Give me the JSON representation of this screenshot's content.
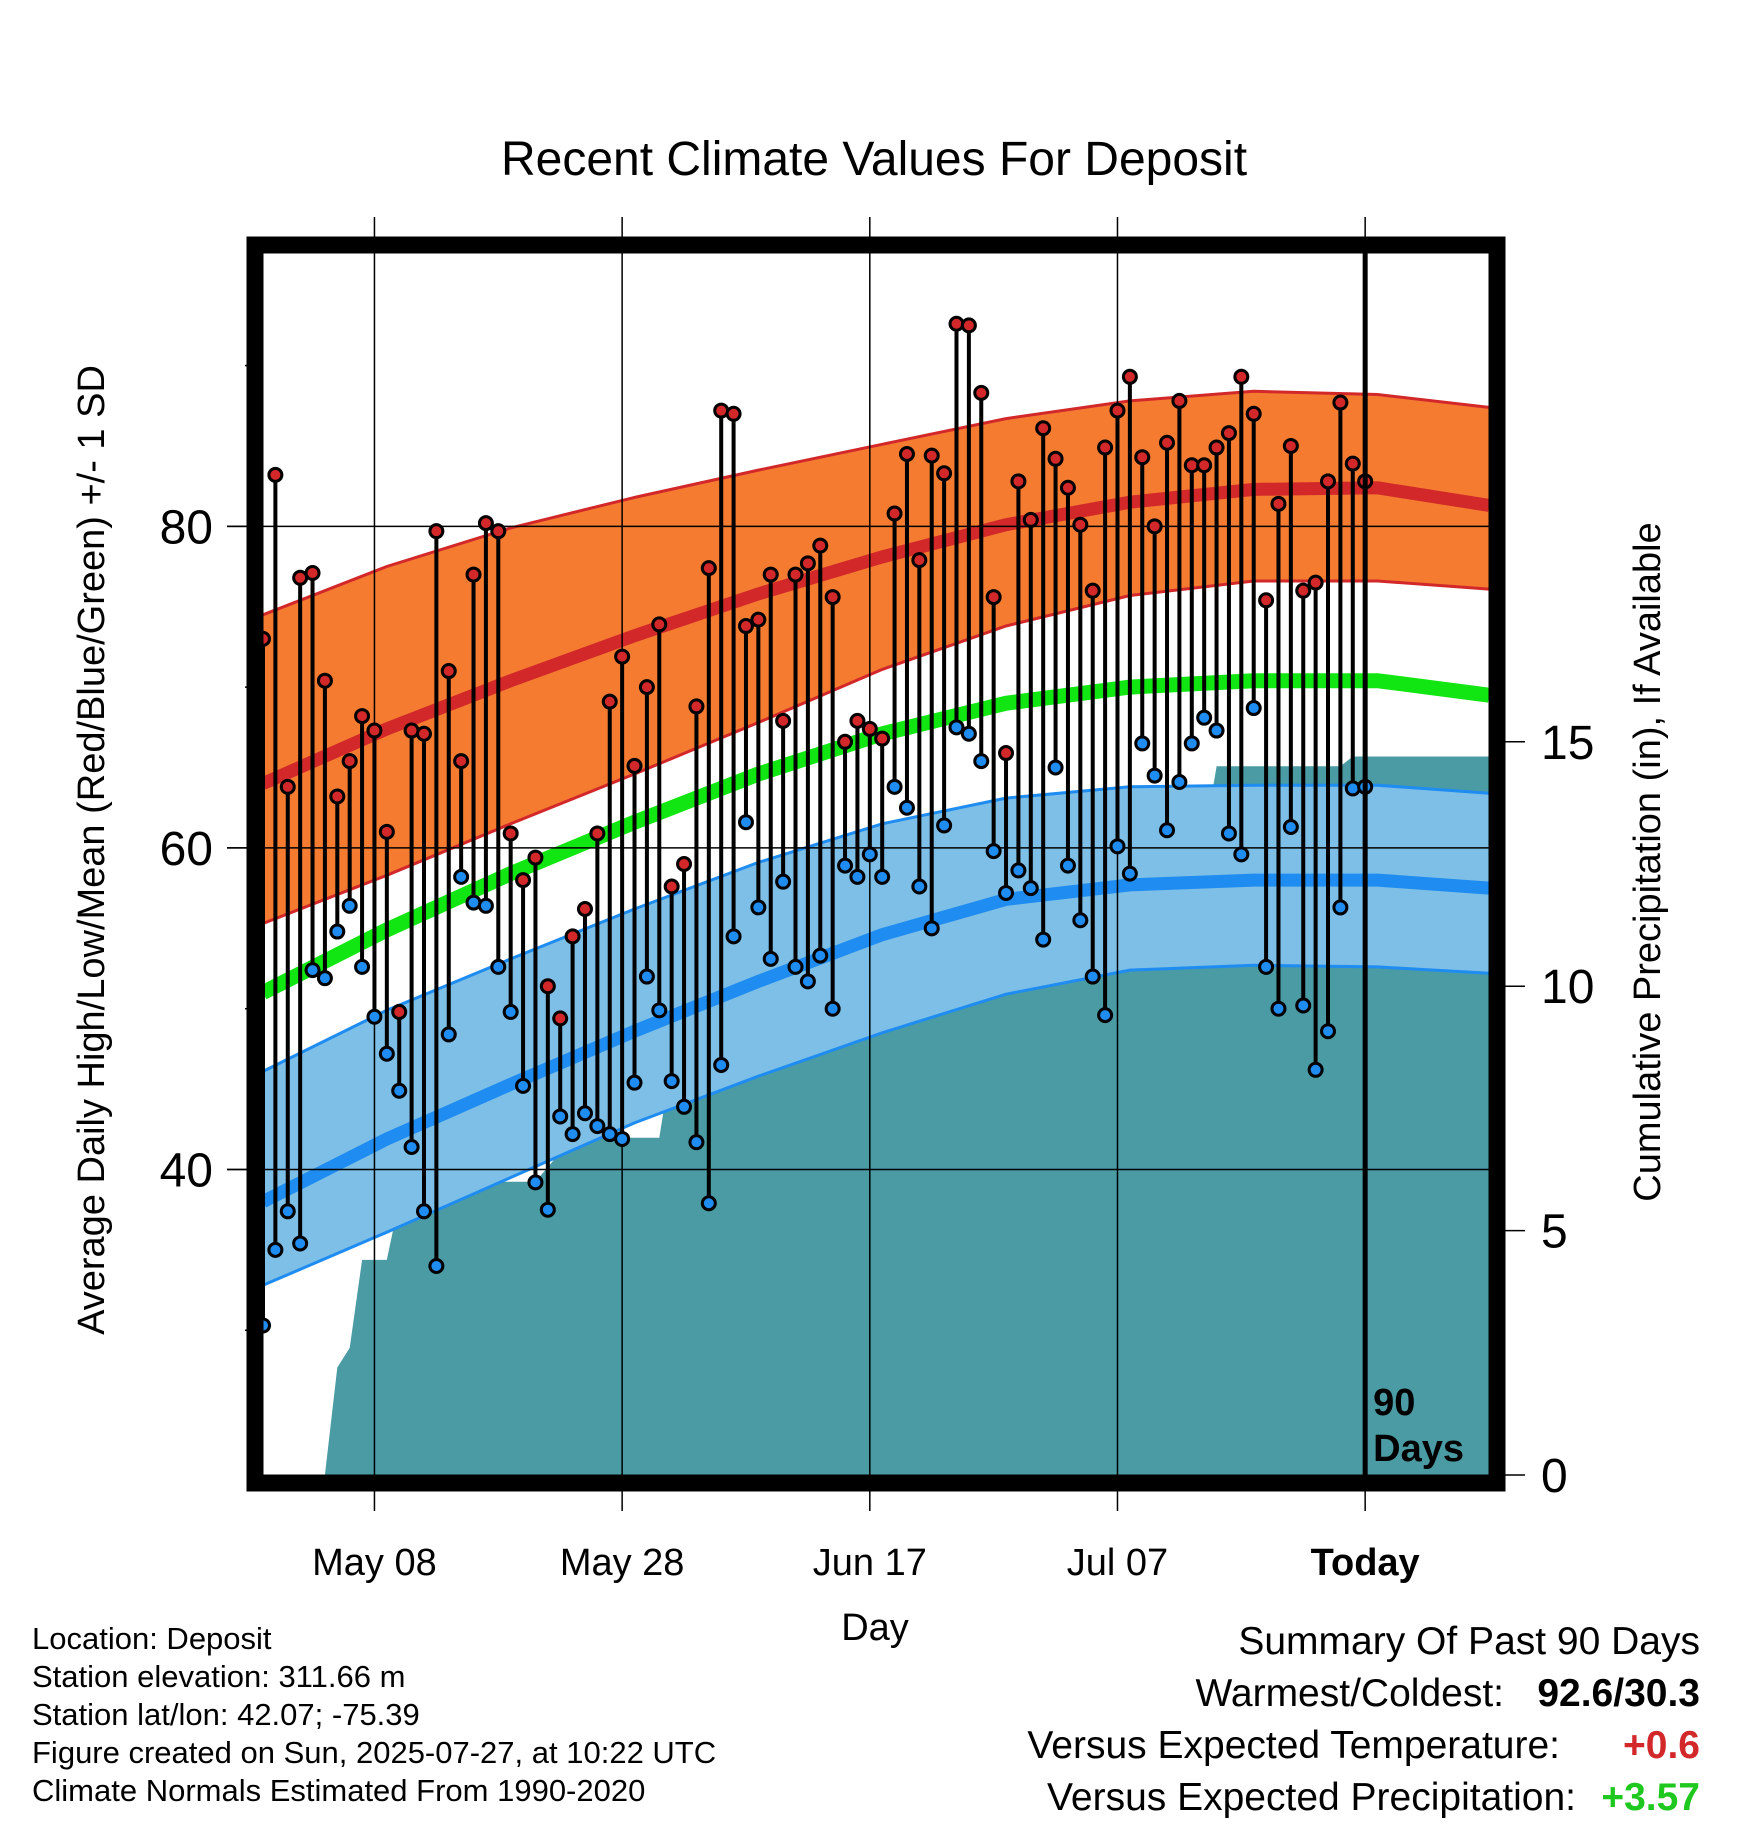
{
  "chart_data": {
    "type": "line",
    "title": "Recent Climate Values For Deposit",
    "xlabel": "Day",
    "ylabel": "Average Daily High/Low/Mean (Red/Blue/Green) +/- 1 SD",
    "y2label": "Cumulative Precipitation (in), If Available",
    "x_ticks": [
      "May 08",
      "May 28",
      "Jun 17",
      "Jul 07",
      "Today"
    ],
    "y_ticks": [
      40,
      60,
      80
    ],
    "y2_ticks": [
      0,
      5,
      10,
      15
    ],
    "ylim": [
      21,
      97
    ],
    "y2lim": [
      0,
      25
    ],
    "today_marker_label": [
      "90",
      "Days"
    ],
    "colors": {
      "high_band": "#f47b30",
      "high_mean": "#d2282a",
      "low_band": "#7dbfe6",
      "low_mean": "#1e8cf0",
      "mean_line": "#12e612",
      "precip_fill": "#4a9ba3",
      "high_dot": "#d2282a",
      "low_dot": "#1e8cf0"
    },
    "daily_high": [
      73.0,
      83.2,
      63.8,
      76.8,
      77.1,
      70.4,
      63.2,
      65.4,
      68.2,
      67.3,
      61.0,
      49.8,
      67.3,
      67.1,
      79.7,
      71.0,
      65.4,
      77.0,
      80.2,
      79.7,
      60.9,
      58.0,
      59.4,
      51.4,
      49.4,
      54.5,
      56.2,
      60.9,
      69.1,
      71.9,
      65.1,
      70.0,
      73.9,
      57.6,
      59.0,
      68.8,
      77.4,
      87.2,
      87.0,
      73.8,
      74.2,
      77.0,
      67.9,
      77.0,
      77.7,
      78.8,
      75.6,
      66.6,
      67.9,
      67.4,
      66.8,
      80.8,
      84.5,
      77.9,
      84.4,
      83.3,
      92.6,
      92.5,
      88.3,
      75.6,
      65.9,
      82.8,
      80.4,
      86.1,
      84.2,
      82.4,
      80.1,
      76.0,
      84.9,
      87.2,
      89.3,
      84.3,
      80.0,
      85.2,
      87.8,
      83.8,
      83.8,
      84.9,
      85.8,
      89.3,
      87.0,
      75.4,
      81.4,
      85.0,
      76.0,
      76.5,
      82.8,
      87.7,
      83.9,
      82.8
    ],
    "daily_low": [
      30.3,
      35.0,
      37.4,
      35.4,
      52.4,
      51.9,
      54.8,
      56.4,
      52.6,
      49.5,
      47.2,
      44.9,
      41.4,
      37.4,
      34.0,
      48.4,
      58.2,
      56.6,
      56.4,
      52.6,
      49.8,
      45.2,
      39.2,
      37.5,
      43.3,
      42.2,
      43.5,
      42.7,
      42.2,
      41.9,
      45.4,
      52.0,
      49.9,
      45.5,
      43.9,
      41.7,
      37.9,
      46.5,
      54.5,
      61.6,
      56.3,
      53.1,
      57.9,
      52.6,
      51.7,
      53.3,
      50.0,
      58.9,
      58.2,
      59.6,
      58.2,
      63.8,
      62.5,
      57.6,
      55.0,
      61.4,
      67.5,
      67.1,
      65.4,
      59.8,
      57.2,
      58.6,
      57.5,
      54.3,
      65.0,
      58.9,
      55.5,
      52.0,
      49.6,
      60.1,
      58.4,
      66.5,
      64.5,
      61.1,
      64.1,
      66.5,
      68.1,
      67.3,
      60.9,
      59.6,
      68.7,
      52.6,
      50.0,
      61.3,
      50.2,
      46.2,
      48.6,
      56.3,
      63.7,
      63.8
    ],
    "normal_days": [
      0,
      10,
      20,
      30,
      40,
      50,
      60,
      70,
      80,
      90,
      99
    ],
    "normal_high_mean": [
      64.0,
      67.4,
      70.4,
      73.2,
      75.8,
      78.1,
      80.1,
      81.5,
      82.3,
      82.4,
      81.3
    ],
    "normal_high_upper": [
      74.5,
      77.5,
      79.9,
      81.8,
      83.5,
      85.1,
      86.7,
      87.8,
      88.4,
      88.2,
      87.4
    ],
    "normal_high_lower": [
      55.3,
      58.3,
      61.5,
      64.6,
      67.8,
      71.1,
      73.8,
      75.7,
      76.6,
      76.6,
      76.1
    ],
    "normal_mean": [
      51.0,
      54.9,
      58.4,
      61.6,
      64.6,
      67.1,
      69.0,
      70.0,
      70.4,
      70.4,
      69.5
    ],
    "normal_low_mean": [
      38.0,
      41.9,
      45.3,
      48.6,
      51.7,
      54.6,
      56.8,
      57.7,
      58.0,
      58.0,
      57.5
    ],
    "normal_low_upper": [
      46.1,
      49.9,
      53.1,
      56.2,
      59.1,
      61.5,
      63.1,
      63.8,
      63.9,
      63.9,
      63.4
    ],
    "normal_low_lower": [
      32.8,
      36.1,
      39.5,
      42.9,
      45.8,
      48.5,
      50.9,
      52.4,
      52.7,
      52.6,
      52.2
    ],
    "precip_cumulative": [
      0.0,
      0.0,
      0.0,
      0.0,
      0.0,
      0.0,
      2.2,
      2.6,
      4.4,
      4.4,
      4.4,
      5.6,
      5.6,
      5.6,
      5.6,
      5.6,
      5.8,
      5.8,
      5.9,
      6.0,
      6.0,
      6.0,
      6.0,
      6.3,
      6.6,
      6.8,
      6.9,
      6.9,
      6.9,
      6.9,
      6.9,
      6.9,
      6.9,
      8.5,
      8.5,
      8.5,
      8.5,
      8.5,
      8.6,
      8.6,
      8.7,
      8.7,
      9.0,
      9.0,
      9.0,
      9.0,
      9.2,
      9.2,
      9.2,
      9.2,
      9.2,
      9.6,
      9.6,
      9.6,
      9.6,
      12.2,
      12.2,
      12.2,
      12.2,
      12.3,
      12.4,
      12.4,
      12.4,
      12.6,
      12.6,
      12.7,
      12.7,
      12.8,
      12.8,
      12.8,
      12.8,
      12.9,
      12.9,
      13.0,
      13.0,
      13.0,
      13.0,
      14.5,
      14.5,
      14.5,
      14.5,
      14.5,
      14.5,
      14.5,
      14.5,
      14.5,
      14.5,
      14.5,
      14.7,
      14.7,
      14.7,
      14.7,
      14.7,
      14.7,
      14.7,
      14.7,
      14.7,
      14.7,
      14.7,
      14.7
    ]
  },
  "footer": {
    "location": "Location: Deposit",
    "elevation": "Station elevation: 311.66 m",
    "latlon": "Station lat/lon: 42.07; -75.39",
    "created": "Figure created on Sun, 2025-07-27, at 10:22 UTC",
    "normals": "Climate Normals Estimated From 1990-2020"
  },
  "summary": {
    "heading": "Summary Of Past 90 Days",
    "warmest_label": "Warmest/Coldest:",
    "warmest_value": "92.6/30.3",
    "temp_label": "Versus Expected Temperature:",
    "temp_value": "+0.6",
    "precip_label": "Versus Expected Precipitation:",
    "precip_value": "+3.57"
  }
}
